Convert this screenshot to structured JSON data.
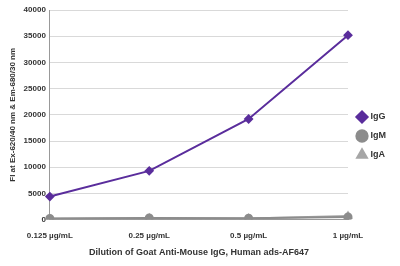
{
  "chart_data": {
    "type": "line",
    "x_label": "Dilution of Goat Anti-Mouse IgG, Human ads-AF647",
    "y_label": "FI at Ex-620/40 nm & Em-680/30 nm",
    "categories": [
      "0.125 µg/mL",
      "0.25 µg/mL",
      "0.5 µg/mL",
      "1 µg/mL"
    ],
    "series": [
      {
        "name": "IgG",
        "color": "#5a2d9c",
        "marker": "diamond",
        "values": [
          4400,
          9300,
          19200,
          35200
        ]
      },
      {
        "name": "IgM",
        "color": "#8c8c8c",
        "marker": "circle",
        "values": [
          200,
          300,
          250,
          500
        ]
      },
      {
        "name": "IgA",
        "color": "#a6a6a6",
        "marker": "triangle",
        "values": [
          150,
          250,
          200,
          700
        ]
      }
    ],
    "ylim": [
      0,
      40000
    ],
    "yticks": [
      0,
      5000,
      10000,
      15000,
      20000,
      25000,
      30000,
      35000,
      40000
    ],
    "grid": true,
    "legend": "right"
  }
}
